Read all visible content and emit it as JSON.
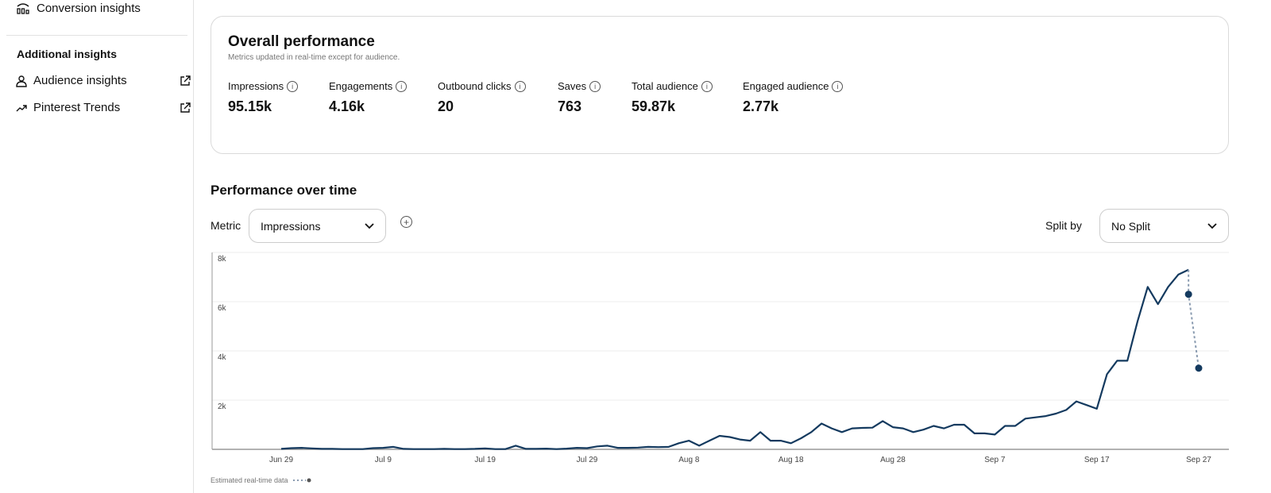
{
  "sidebar": {
    "conversion": "Conversion insights",
    "section_title": "Additional insights",
    "items": [
      {
        "label": "Audience insights",
        "icon": "person-icon"
      },
      {
        "label": "Pinterest Trends",
        "icon": "trend-icon"
      }
    ]
  },
  "overall": {
    "title": "Overall performance",
    "subtitle": "Metrics updated in real-time except for audience.",
    "metrics": [
      {
        "label": "Impressions",
        "value": "95.15k"
      },
      {
        "label": "Engagements",
        "value": "4.16k"
      },
      {
        "label": "Outbound clicks",
        "value": "20"
      },
      {
        "label": "Saves",
        "value": "763"
      },
      {
        "label": "Total audience",
        "value": "59.87k"
      },
      {
        "label": "Engaged audience",
        "value": "2.77k"
      }
    ]
  },
  "performance": {
    "title": "Performance over time",
    "metric_label": "Metric",
    "metric_value": "Impressions",
    "split_label": "Split by",
    "split_value": "No Split",
    "footnote": "Estimated real-time data"
  },
  "colors": {
    "line": "#143a5f",
    "estimate": "#8a9bb0",
    "grid": "#eeeeee"
  },
  "chart_data": {
    "type": "line",
    "title": "Impressions",
    "ylim": [
      0,
      8000
    ],
    "yticks": [
      {
        "v": 2000,
        "label": "2k"
      },
      {
        "v": 4000,
        "label": "4k"
      },
      {
        "v": 6000,
        "label": "6k"
      },
      {
        "v": 8000,
        "label": "8k"
      }
    ],
    "xticks": [
      {
        "day": 0,
        "label": "Jun 29"
      },
      {
        "day": 10,
        "label": "Jul 9"
      },
      {
        "day": 20,
        "label": "Jul 19"
      },
      {
        "day": 30,
        "label": "Jul 29"
      },
      {
        "day": 40,
        "label": "Aug 8"
      },
      {
        "day": 50,
        "label": "Aug 18"
      },
      {
        "day": 60,
        "label": "Aug 28"
      },
      {
        "day": 70,
        "label": "Sep 7"
      },
      {
        "day": 80,
        "label": "Sep 17"
      },
      {
        "day": 90,
        "label": "Sep 27"
      }
    ],
    "start_date": "Jun 29",
    "values": [
      20,
      50,
      60,
      40,
      20,
      20,
      10,
      10,
      10,
      50,
      60,
      100,
      20,
      10,
      10,
      10,
      20,
      10,
      10,
      20,
      40,
      10,
      10,
      150,
      20,
      20,
      30,
      10,
      30,
      60,
      50,
      120,
      150,
      60,
      60,
      70,
      100,
      90,
      100,
      250,
      350,
      150,
      350,
      550,
      500,
      400,
      350,
      700,
      350,
      350,
      250,
      450,
      700,
      1050,
      850,
      700,
      850,
      870,
      880,
      1150,
      900,
      850,
      700,
      800,
      950,
      850,
      1000,
      1000,
      650,
      650,
      600,
      950,
      950,
      1250,
      1300,
      1350,
      1450,
      1600,
      1950,
      1800,
      1650,
      3050,
      3600,
      3600,
      5200,
      6600,
      5900,
      6600,
      7100,
      7300
    ],
    "estimated": [
      {
        "day": 89,
        "value": 6300
      },
      {
        "day": 90,
        "value": 3300
      }
    ]
  }
}
